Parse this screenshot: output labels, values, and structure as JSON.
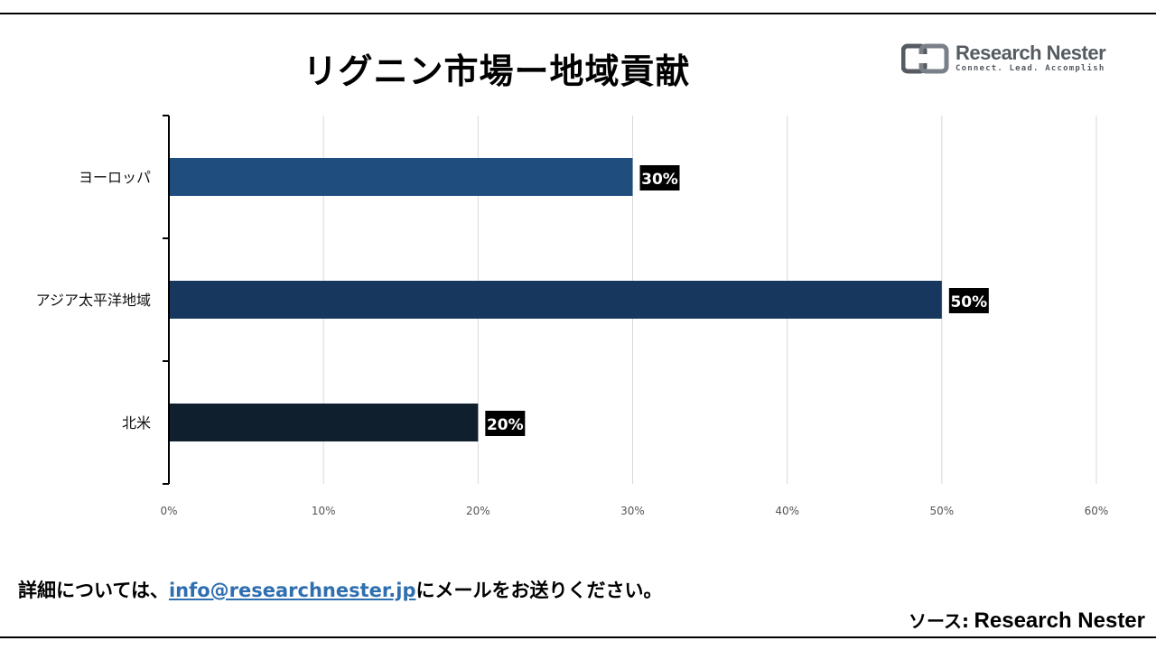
{
  "title": "リグニン市場ー地域貢献",
  "logo": {
    "name": "Research Nester",
    "tagline": "Connect. Lead. Accomplish"
  },
  "footer": {
    "note_before": "詳細については、",
    "email": "info@researchnester.jp",
    "note_after": "にメールをお送りください。",
    "source_prefix": "ソース:",
    "source_name": "Research Nester"
  },
  "chart_data": {
    "type": "bar",
    "orientation": "horizontal",
    "title": "リグニン市場ー地域貢献",
    "categories": [
      "ヨーロッパ",
      "アジア太平洋地域",
      "北米"
    ],
    "values": [
      30,
      50,
      20
    ],
    "value_labels": [
      "30%",
      "50%",
      "20%"
    ],
    "bar_colors": [
      "#1f4e7e",
      "#17375e",
      "#0f1f2e"
    ],
    "value_label_background": "#000000",
    "xlim": [
      0,
      60
    ],
    "xticks": [
      "0%",
      "10%",
      "20%",
      "30%",
      "40%",
      "50%",
      "60%"
    ],
    "grid": true,
    "legend": "none"
  }
}
